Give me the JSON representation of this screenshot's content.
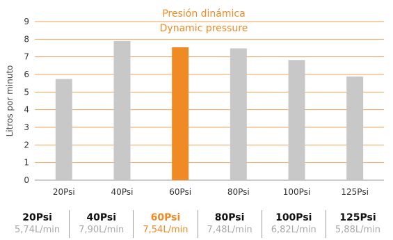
{
  "colors": {
    "accent": "#f08a24",
    "bar": "#c8c8c8",
    "grid": "#f2a35a"
  },
  "chart_data": {
    "type": "bar",
    "title": "Presión dinámica",
    "subtitle": "Dynamic pressure",
    "ylabel": "Litros por minuto",
    "xlabel": "",
    "categories": [
      "20Psi",
      "40Psi",
      "60Psi",
      "80Psi",
      "100Psi",
      "125Psi"
    ],
    "values": [
      5.74,
      7.9,
      7.54,
      7.48,
      6.82,
      5.88
    ],
    "highlight_index": 2,
    "ylim": [
      0,
      9
    ],
    "yticks": [
      "0",
      "1",
      "2",
      "3",
      "4",
      "5",
      "6",
      "7",
      "8",
      "9"
    ],
    "grid": true
  },
  "summary": [
    {
      "pressure": "20Psi",
      "flow": "5,74L/min"
    },
    {
      "pressure": "40Psi",
      "flow": "7,90L/min"
    },
    {
      "pressure": "60Psi",
      "flow": "7,54L/min"
    },
    {
      "pressure": "80Psi",
      "flow": "7,48L/min"
    },
    {
      "pressure": "100Psi",
      "flow": "6,82L/min"
    },
    {
      "pressure": "125Psi",
      "flow": "5,88L/min"
    }
  ]
}
